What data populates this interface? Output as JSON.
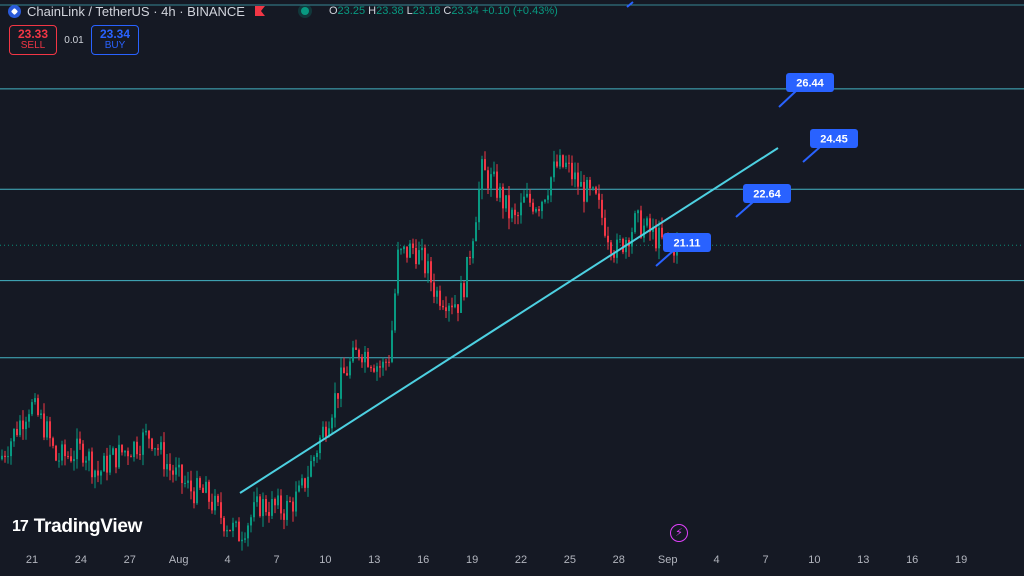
{
  "header": {
    "symbol": "ChainLink / TetherUS · 4h · BINANCE",
    "ohlc": {
      "o_label": "O",
      "o": "23.25",
      "h_label": "H",
      "h": "23.38",
      "l_label": "L",
      "l": "23.18",
      "c_label": "C",
      "c": "23.34",
      "change": "+0.10 (+0.43%)"
    }
  },
  "trade": {
    "sell_price": "23.33",
    "sell_label": "SELL",
    "spread": "0.01",
    "buy_price": "23.34",
    "buy_label": "BUY"
  },
  "brand": "TradingView",
  "colors": {
    "background": "#151924",
    "up": "#089981",
    "down": "#f23645",
    "lines": "#4dd0e1",
    "label_bg": "#2962ff",
    "axis_text": "#b2b5be"
  },
  "chart_data": {
    "type": "candlestick",
    "interval": "4h",
    "x_ticks": [
      "21",
      "24",
      "27",
      "Aug",
      "4",
      "7",
      "10",
      "13",
      "16",
      "19",
      "22",
      "25",
      "28",
      "Sep",
      "4",
      "7",
      "10",
      "13",
      "16",
      "19"
    ],
    "ylim": [
      17.4,
      28.2
    ],
    "waypoints": [
      [
        0,
        19.1
      ],
      [
        30,
        20.2
      ],
      [
        46,
        19.7
      ],
      [
        56,
        19.1
      ],
      [
        84,
        19.3
      ],
      [
        98,
        18.8
      ],
      [
        110,
        19.1
      ],
      [
        136,
        19.4
      ],
      [
        150,
        19.6
      ],
      [
        170,
        18.9
      ],
      [
        190,
        18.5
      ],
      [
        206,
        18.4
      ],
      [
        224,
        17.9
      ],
      [
        238,
        17.6
      ],
      [
        260,
        18.2
      ],
      [
        285,
        18.1
      ],
      [
        300,
        18.4
      ],
      [
        322,
        19.6
      ],
      [
        342,
        20.7
      ],
      [
        360,
        21.3
      ],
      [
        382,
        20.9
      ],
      [
        390,
        21.2
      ],
      [
        398,
        23.1
      ],
      [
        414,
        23.3
      ],
      [
        426,
        22.9
      ],
      [
        436,
        22.4
      ],
      [
        458,
        22.2
      ],
      [
        466,
        22.7
      ],
      [
        472,
        23.5
      ],
      [
        482,
        24.8
      ],
      [
        496,
        24.5
      ],
      [
        508,
        24.0
      ],
      [
        516,
        23.8
      ],
      [
        524,
        24.2
      ],
      [
        540,
        24.2
      ],
      [
        556,
        24.9
      ],
      [
        566,
        24.9
      ],
      [
        580,
        24.5
      ],
      [
        596,
        24.2
      ],
      [
        608,
        23.6
      ],
      [
        616,
        23.2
      ],
      [
        626,
        23.5
      ],
      [
        636,
        23.8
      ],
      [
        650,
        23.6
      ],
      [
        662,
        23.4
      ],
      [
        680,
        23.3
      ]
    ],
    "horizontal_levels": [
      26.44,
      24.45,
      22.64,
      21.11
    ],
    "current_price": 23.34,
    "trendline": {
      "from": {
        "date": "Aug 2",
        "price": 17.5
      },
      "to": {
        "date": "Sep 6",
        "price": 24.75
      }
    },
    "annotations": [
      {
        "text": "26.44",
        "price": 26.44
      },
      {
        "text": "24.45",
        "price": 24.45
      },
      {
        "text": "22.64",
        "price": 22.64
      },
      {
        "text": "21.11",
        "price": 21.11
      }
    ]
  }
}
